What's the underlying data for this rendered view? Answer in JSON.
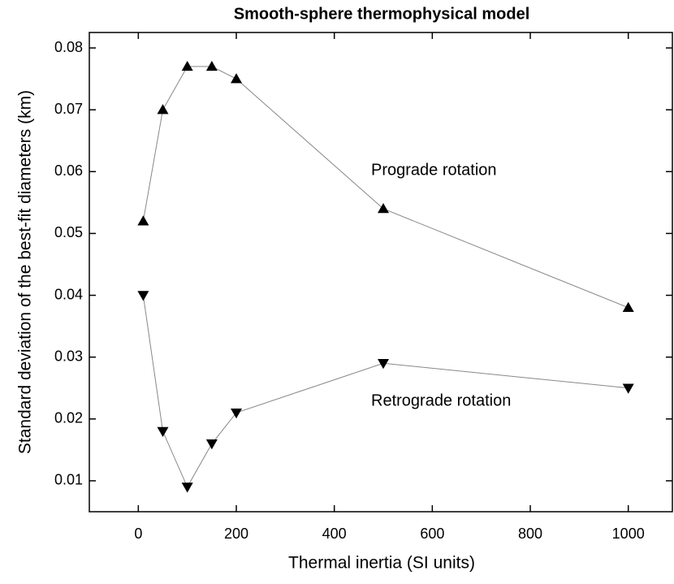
{
  "chart_data": {
    "type": "line",
    "title": "Smooth-sphere thermophysical model",
    "xlabel": "Thermal inertia (SI units)",
    "ylabel": "Standard deviation of the best-fit diameters (km)",
    "x": [
      10,
      50,
      100,
      150,
      200,
      500,
      1000
    ],
    "series": [
      {
        "name": "Prograde rotation",
        "color": "#000000",
        "marker": "triangle-up",
        "values": [
          0.052,
          0.07,
          0.077,
          0.077,
          0.075,
          0.054,
          0.038
        ]
      },
      {
        "name": "Retrograde rotation",
        "color": "#000000",
        "marker": "triangle-down",
        "values": [
          0.04,
          0.018,
          0.009,
          0.016,
          0.021,
          0.029,
          0.025
        ]
      }
    ],
    "xlim": [
      -100,
      1090
    ],
    "xticks": [
      0,
      200,
      400,
      600,
      800,
      1000
    ],
    "ylim": [
      0.005,
      0.0825
    ],
    "yticks": [
      0.01,
      0.02,
      0.03,
      0.04,
      0.05,
      0.06,
      0.07,
      0.08
    ],
    "grid": false
  }
}
